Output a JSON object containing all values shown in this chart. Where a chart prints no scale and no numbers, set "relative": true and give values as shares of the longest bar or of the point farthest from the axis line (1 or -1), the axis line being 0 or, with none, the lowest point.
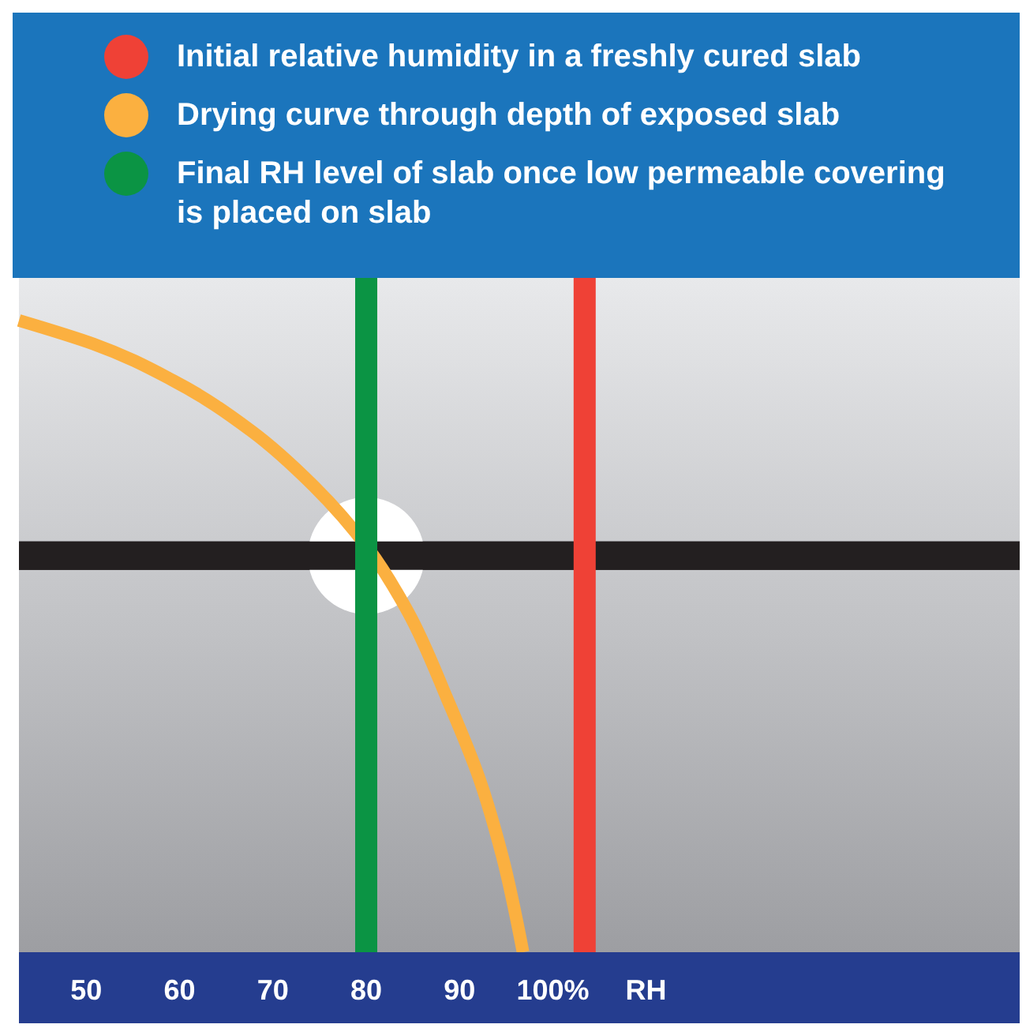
{
  "chart_data": {
    "type": "line",
    "relative": true,
    "xlabel": "RH",
    "xlim": [
      42.8,
      150
    ],
    "xticks": [
      50,
      60,
      70,
      80,
      90,
      {
        "value": 100,
        "label": "100%"
      }
    ],
    "legend": "top",
    "series": [
      {
        "name": "Initial relative humidity in a freshly cured slab",
        "color": "#ef4136",
        "x": [
          103.4,
          103.4
        ],
        "values": [
          0,
          1
        ]
      },
      {
        "name": "Drying curve through depth of exposed slab",
        "color": "#fbb040",
        "x": [
          42.8,
          50.8,
          59.3,
          67.7,
          74.4,
          80.3,
          84.5,
          88.7,
          92.1,
          94.6,
          96.8
        ],
        "values": [
          0.937,
          0.902,
          0.848,
          0.773,
          0.691,
          0.597,
          0.504,
          0.375,
          0.258,
          0.141,
          0
        ]
      },
      {
        "name": "Final RH level of slab once low permeable covering is placed on slab",
        "color": "#0b9444",
        "x": [
          80,
          80
        ],
        "values": [
          0,
          1
        ]
      }
    ],
    "ref_lines": [
      {
        "axis": "y",
        "value": 0.588,
        "color": "#231f20"
      }
    ]
  }
}
